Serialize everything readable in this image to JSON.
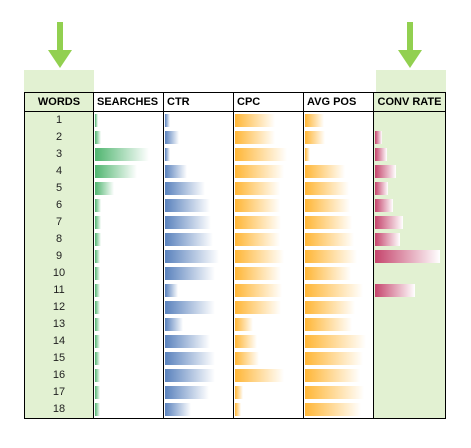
{
  "colors": {
    "highlight": "#e2f1d2",
    "arrow": "#92d050",
    "searches": [
      "#4fb56f",
      "#ffffff"
    ],
    "ctr": [
      "#5a82bd",
      "#ffffff"
    ],
    "cpc": [
      "#ffb636",
      "#ffffff"
    ],
    "avgpos": [
      "#ffb636",
      "#ffffff"
    ],
    "conv": [
      "#c5446c",
      "#ffffff"
    ]
  },
  "headers": {
    "words": "WORDS",
    "searches": "SEARCHES",
    "ctr": "CTR",
    "cpc": "CPC",
    "avgpos": "AVG POS",
    "conv": "CONV RATE"
  },
  "rows": [
    {
      "word": "1",
      "searches": 0.05,
      "ctr": 0.08,
      "cpc": 0.62,
      "avgpos": 0.3,
      "conv": 0.0
    },
    {
      "word": "2",
      "searches": 0.1,
      "ctr": 0.22,
      "cpc": 0.62,
      "avgpos": 0.32,
      "conv": 0.1
    },
    {
      "word": "3",
      "searches": 0.85,
      "ctr": 0.08,
      "cpc": 0.82,
      "avgpos": 0.08,
      "conv": 0.18
    },
    {
      "word": "4",
      "searches": 0.65,
      "ctr": 0.35,
      "cpc": 0.76,
      "avgpos": 0.62,
      "conv": 0.32
    },
    {
      "word": "5",
      "searches": 0.3,
      "ctr": 0.62,
      "cpc": 0.7,
      "avgpos": 0.68,
      "conv": 0.2
    },
    {
      "word": "6",
      "searches": 0.1,
      "ctr": 0.7,
      "cpc": 0.7,
      "avgpos": 0.7,
      "conv": 0.28
    },
    {
      "word": "7",
      "searches": 0.1,
      "ctr": 0.72,
      "cpc": 0.72,
      "avgpos": 0.74,
      "conv": 0.42
    },
    {
      "word": "8",
      "searches": 0.1,
      "ctr": 0.75,
      "cpc": 0.7,
      "avgpos": 0.76,
      "conv": 0.38
    },
    {
      "word": "9",
      "searches": 0.08,
      "ctr": 0.85,
      "cpc": 0.76,
      "avgpos": 0.82,
      "conv": 0.98
    },
    {
      "word": "10",
      "searches": 0.08,
      "ctr": 0.78,
      "cpc": 0.72,
      "avgpos": 0.72,
      "conv": 0.0
    },
    {
      "word": "11",
      "searches": 0.08,
      "ctr": 0.2,
      "cpc": 0.74,
      "avgpos": 0.9,
      "conv": 0.6
    },
    {
      "word": "12",
      "searches": 0.08,
      "ctr": 0.78,
      "cpc": 0.72,
      "avgpos": 0.78,
      "conv": 0.0
    },
    {
      "word": "13",
      "searches": 0.08,
      "ctr": 0.28,
      "cpc": 0.28,
      "avgpos": 0.74,
      "conv": 0.0
    },
    {
      "word": "14",
      "searches": 0.08,
      "ctr": 0.7,
      "cpc": 0.35,
      "avgpos": 0.96,
      "conv": 0.0
    },
    {
      "word": "15",
      "searches": 0.08,
      "ctr": 0.78,
      "cpc": 0.38,
      "avgpos": 0.9,
      "conv": 0.0
    },
    {
      "word": "16",
      "searches": 0.08,
      "ctr": 0.78,
      "cpc": 0.76,
      "avgpos": 0.86,
      "conv": 0.0
    },
    {
      "word": "17",
      "searches": 0.08,
      "ctr": 0.68,
      "cpc": 0.12,
      "avgpos": 0.92,
      "conv": 0.0
    },
    {
      "word": "18",
      "searches": 0.08,
      "ctr": 0.4,
      "cpc": 0.1,
      "avgpos": 0.88,
      "conv": 0.0
    }
  ]
}
